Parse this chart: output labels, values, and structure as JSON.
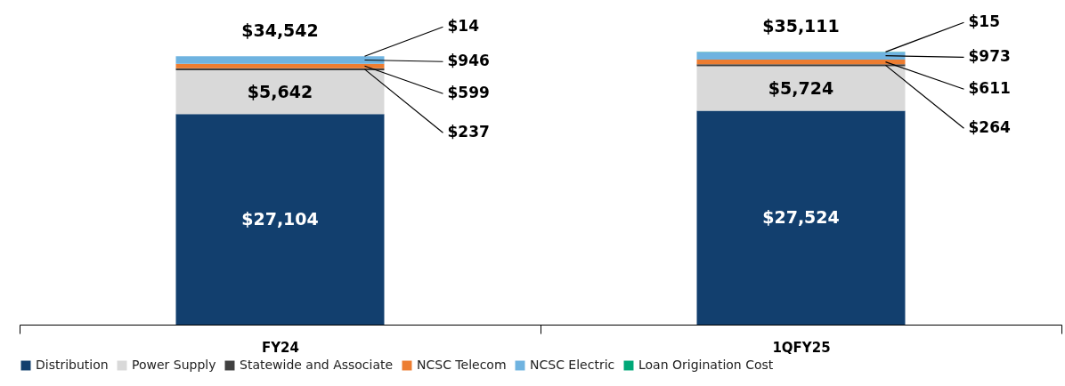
{
  "chart_data": {
    "type": "bar",
    "stacked": true,
    "tick_labels": "x",
    "categories": [
      "FY24",
      "1QFY25"
    ],
    "series": [
      {
        "name": "Distribution",
        "color": "#123f6e",
        "values": [
          27104,
          27524
        ],
        "value_labels": [
          "$27,104",
          "$27,524"
        ]
      },
      {
        "name": "Power Supply",
        "color": "#d9d9d9",
        "values": [
          5642,
          5724
        ],
        "value_labels": [
          "$5,642",
          "$5,724"
        ]
      },
      {
        "name": "Statewide and Associate",
        "color": "#404040",
        "values": [
          237,
          264
        ],
        "value_labels": [
          "$237",
          "$264"
        ]
      },
      {
        "name": "NCSC Telecom",
        "color": "#ed7d31",
        "values": [
          599,
          611
        ],
        "value_labels": [
          "$599",
          "$611"
        ]
      },
      {
        "name": "NCSC Electric",
        "color": "#6fb3e0",
        "values": [
          946,
          973
        ],
        "value_labels": [
          "$946",
          "$973"
        ]
      },
      {
        "name": "Loan Origination Cost",
        "color": "#00a878",
        "values": [
          14,
          15
        ],
        "value_labels": [
          "$14",
          "$15"
        ]
      }
    ],
    "totals": [
      "$34,542",
      "$35,111"
    ],
    "legend": "bottom",
    "grid": false
  }
}
